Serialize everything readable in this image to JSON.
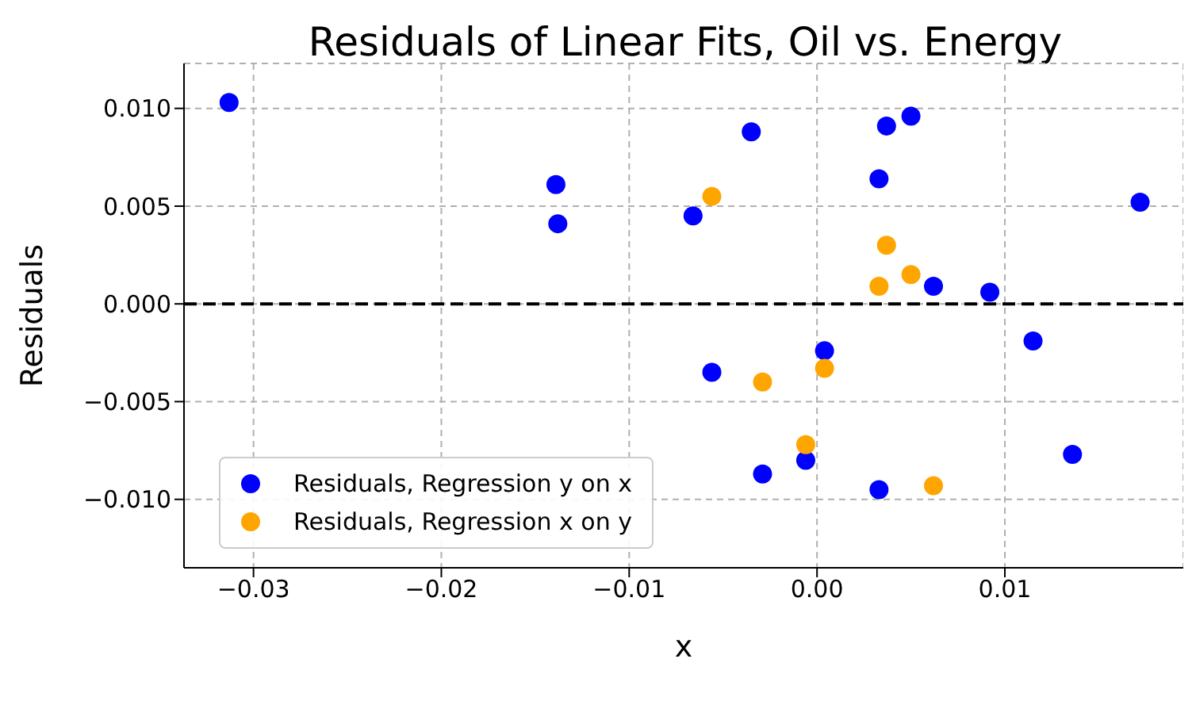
{
  "chart_data": {
    "type": "scatter",
    "title": "Residuals of Linear Fits, Oil vs. Energy",
    "xlabel": "x",
    "ylabel": "Residuals",
    "series": [
      {
        "name": "Residuals, Regression y on x",
        "color": "#0000ff",
        "x": [
          -0.0313,
          -0.0139,
          -0.0138,
          -0.0066,
          -0.0035,
          -0.0056,
          0.0004,
          0.0033,
          0.0037,
          0.005,
          0.0062,
          0.0092,
          0.0115,
          0.0136,
          0.0172,
          -0.0029,
          -0.0006,
          0.0033
        ],
        "values": [
          0.0103,
          0.0061,
          0.0041,
          0.0045,
          0.0088,
          -0.0035,
          -0.0024,
          0.0064,
          0.0091,
          0.0096,
          0.0009,
          0.0006,
          -0.0019,
          -0.0077,
          0.0052,
          -0.0087,
          -0.008,
          -0.0095
        ]
      },
      {
        "name": "Residuals, Regression x on y",
        "color": "#ffa500",
        "x": [
          -0.0056,
          0.0037,
          0.0033,
          0.005,
          -0.0029,
          0.0004,
          -0.0006,
          0.0062
        ],
        "values": [
          0.0055,
          0.003,
          0.0009,
          0.0015,
          -0.004,
          -0.0033,
          -0.0072,
          -0.0093
        ]
      }
    ],
    "xlim": [
      -0.0337,
      0.0195
    ],
    "xticks": [
      {
        "value": -0.03,
        "label": "−0.03"
      },
      {
        "value": -0.02,
        "label": "−0.02"
      },
      {
        "value": -0.01,
        "label": "−0.01"
      },
      {
        "value": 0,
        "label": "0.00"
      },
      {
        "value": 0.01,
        "label": "0.01"
      }
    ],
    "ylim": [
      -0.0135,
      0.0123
    ],
    "yticks": [
      {
        "value": -0.01,
        "label": "−0.010"
      },
      {
        "value": -0.005,
        "label": "−0.005"
      },
      {
        "value": 0,
        "label": "0.000"
      },
      {
        "value": 0.005,
        "label": "0.005"
      },
      {
        "value": 0.01,
        "label": "0.010"
      }
    ],
    "ref_lines": [
      {
        "axis": "y",
        "value": 0,
        "color": "#000000",
        "line_style": "dashed"
      }
    ],
    "grid": true,
    "legend": "bottom left",
    "marker": "circle"
  }
}
